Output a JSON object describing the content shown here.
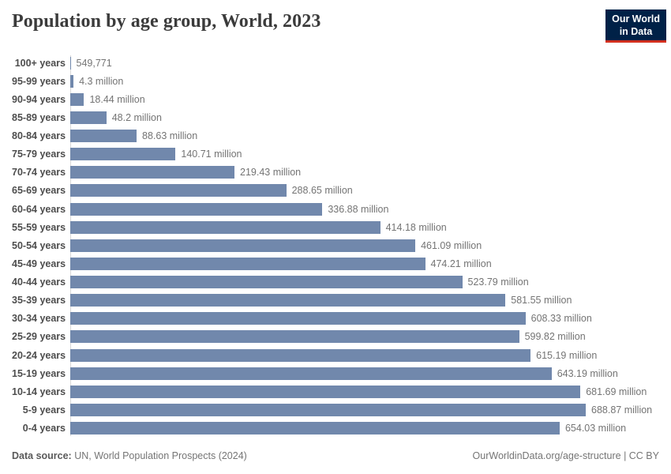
{
  "header": {
    "title": "Population by age group, World, 2023"
  },
  "logo": {
    "line1": "Our World",
    "line2": "in Data",
    "bg_color": "#002147",
    "accent_color": "#d3301f"
  },
  "chart_data": {
    "type": "bar",
    "orientation": "horizontal",
    "title": "Population by age group, World, 2023",
    "xlabel": "",
    "ylabel": "",
    "grid": false,
    "legend": false,
    "xlim_millions": [
      0,
      688.87
    ],
    "bar_color": "#7188ac",
    "axis_color": "#d9d9d9",
    "categories": [
      "100+ years",
      "95-99 years",
      "90-94 years",
      "85-89 years",
      "80-84 years",
      "75-79 years",
      "70-74 years",
      "65-69 years",
      "60-64 years",
      "55-59 years",
      "50-54 years",
      "45-49 years",
      "40-44 years",
      "35-39 years",
      "30-34 years",
      "25-29 years",
      "20-24 years",
      "15-19 years",
      "10-14 years",
      "5-9 years",
      "0-4 years"
    ],
    "values_millions": [
      0.549771,
      4.3,
      18.44,
      48.2,
      88.63,
      140.71,
      219.43,
      288.65,
      336.88,
      414.18,
      461.09,
      474.21,
      523.79,
      581.55,
      608.33,
      599.82,
      615.19,
      643.19,
      681.69,
      688.87,
      654.03
    ],
    "value_labels": [
      "549,771",
      "4.3 million",
      "18.44 million",
      "48.2 million",
      "88.63 million",
      "140.71 million",
      "219.43 million",
      "288.65 million",
      "336.88 million",
      "414.18 million",
      "461.09 million",
      "474.21 million",
      "523.79 million",
      "581.55 million",
      "608.33 million",
      "599.82 million",
      "615.19 million",
      "643.19 million",
      "681.69 million",
      "688.87 million",
      "654.03 million"
    ]
  },
  "footer": {
    "source_label": "Data source:",
    "source_text": " UN, World Population Prospects (2024)",
    "credit": "OurWorldinData.org/age-structure | CC BY"
  }
}
